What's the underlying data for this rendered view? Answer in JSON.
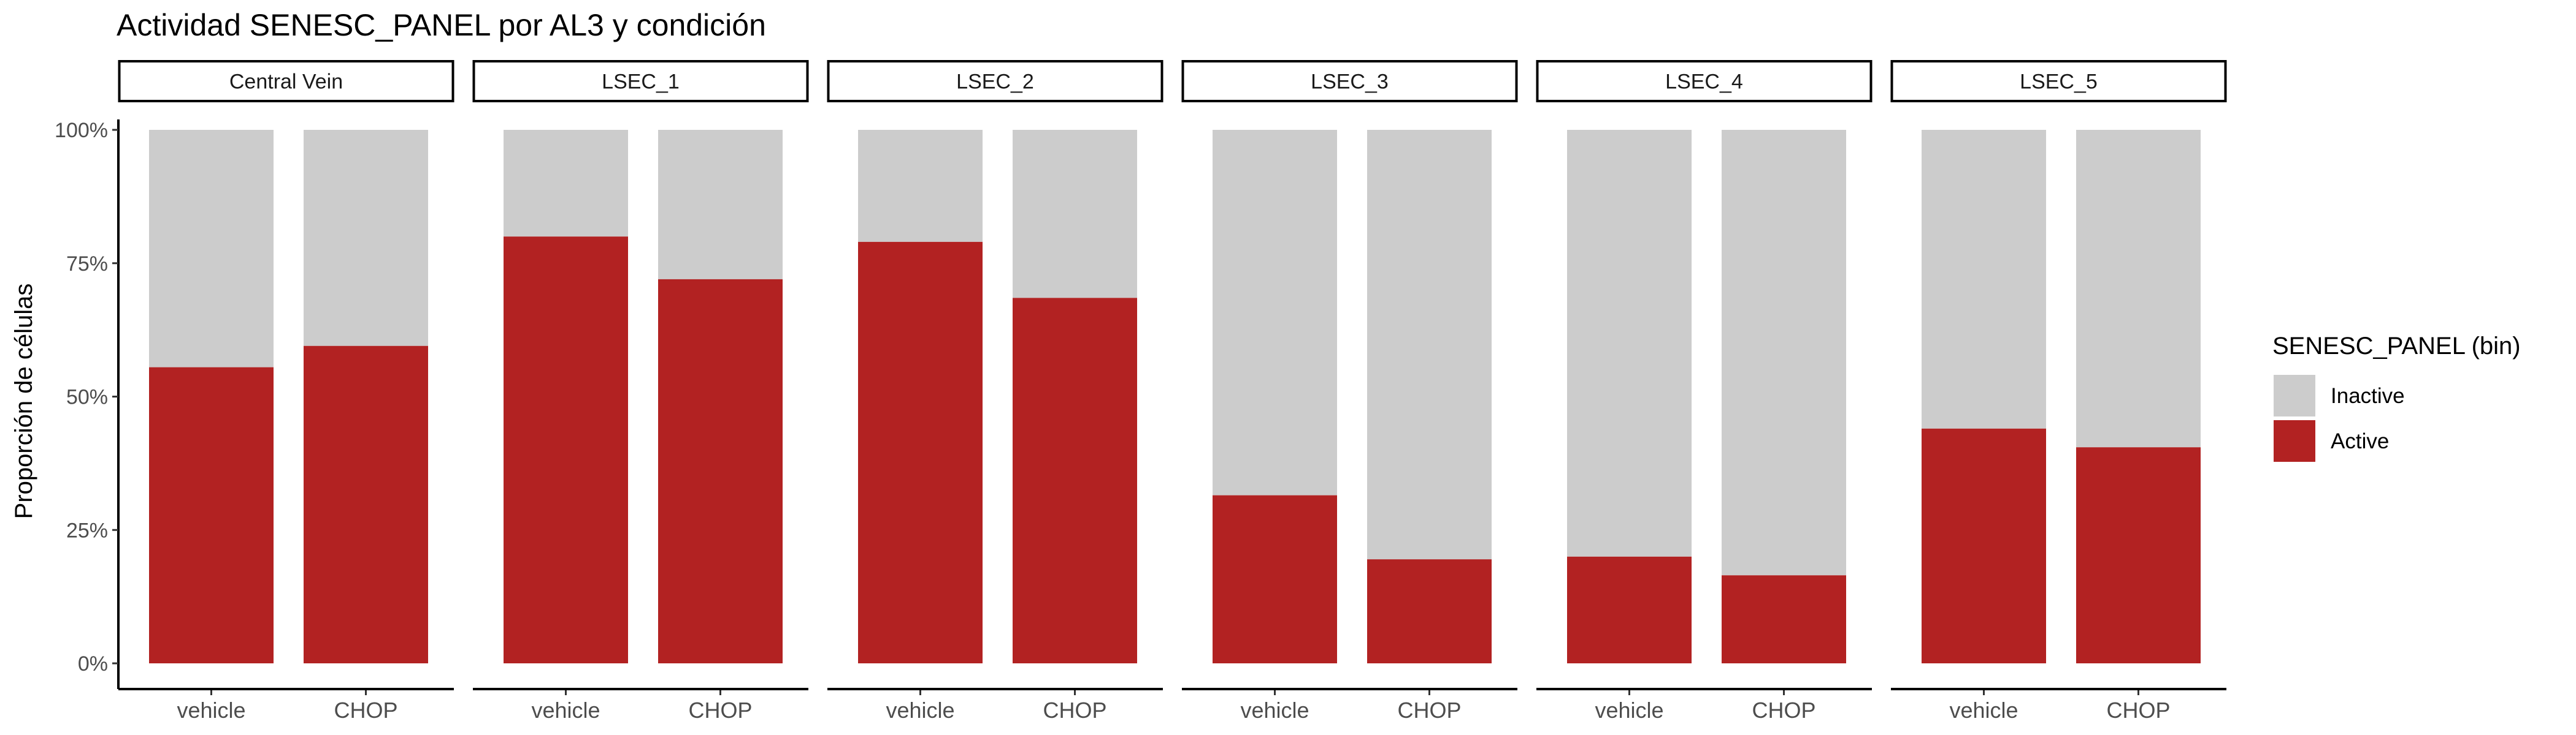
{
  "chart_data": {
    "type": "bar",
    "stacked": true,
    "title": "Actividad SENESC_PANEL por AL3 y condición",
    "ylabel": "Proporción de células",
    "xlabel": "",
    "ylim": [
      0,
      1
    ],
    "y_ticks": [
      "0%",
      "25%",
      "50%",
      "75%",
      "100%"
    ],
    "categories": [
      "vehicle",
      "CHOP"
    ],
    "facets": [
      {
        "label": "Central Vein",
        "active": [
          0.555,
          0.595
        ]
      },
      {
        "label": "LSEC_1",
        "active": [
          0.8,
          0.72
        ]
      },
      {
        "label": "LSEC_2",
        "active": [
          0.79,
          0.685
        ]
      },
      {
        "label": "LSEC_3",
        "active": [
          0.315,
          0.195
        ]
      },
      {
        "label": "LSEC_4",
        "active": [
          0.2,
          0.165
        ]
      },
      {
        "label": "LSEC_5",
        "active": [
          0.44,
          0.405
        ]
      }
    ],
    "legend": {
      "title": "SENESC_PANEL (bin)",
      "placement": "right",
      "items": [
        {
          "label": "Inactive",
          "color": "#cccccc"
        },
        {
          "label": "Active",
          "color": "#b22222"
        }
      ]
    },
    "colors": {
      "active": "#b22222",
      "inactive": "#cccccc"
    }
  }
}
